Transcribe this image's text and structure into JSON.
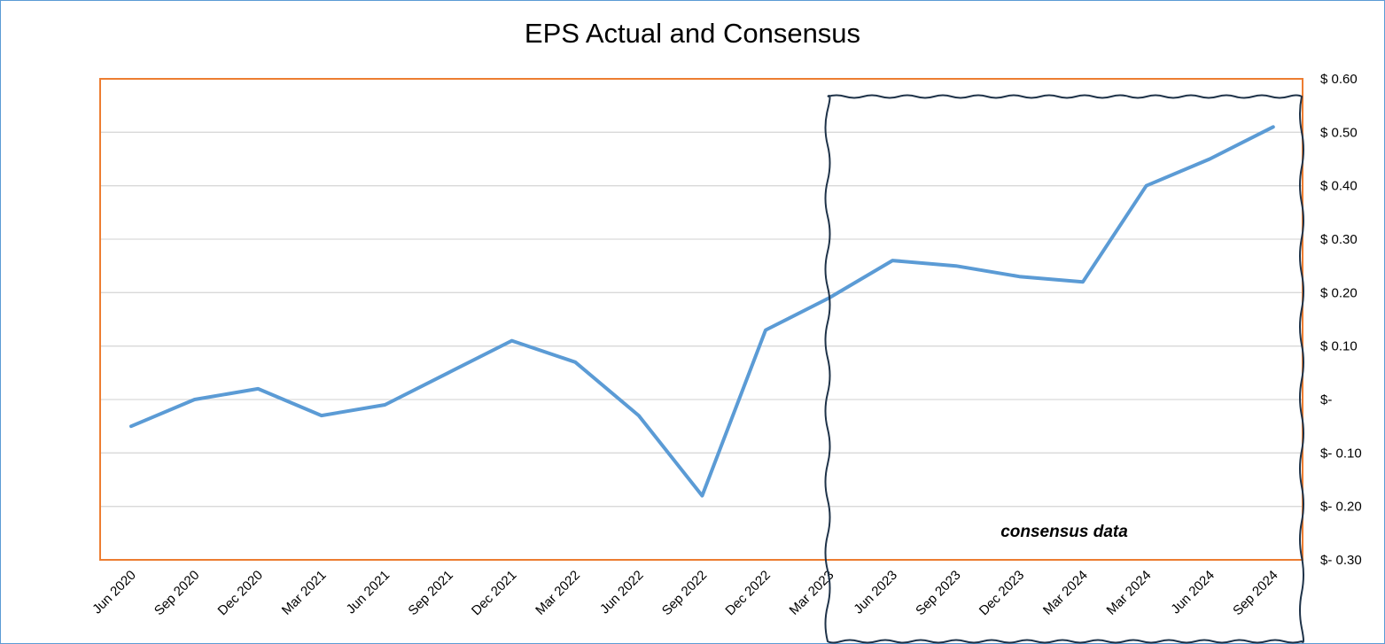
{
  "chart_data": {
    "type": "line",
    "title": "EPS Actual and Consensus",
    "xlabel": "",
    "ylabel": "",
    "ylim": [
      -0.3,
      0.6
    ],
    "y_ticks": [
      0.6,
      0.5,
      0.4,
      0.3,
      0.2,
      0.1,
      0,
      -0.1,
      -0.2,
      -0.3
    ],
    "y_tick_labels": [
      "$ 0.60",
      "$ 0.50",
      "$ 0.40",
      "$ 0.30",
      "$ 0.20",
      "$ 0.10",
      "$-",
      "$- 0.10",
      "$- 0.20",
      "$- 0.30"
    ],
    "y_axis_side": "right",
    "grid": true,
    "categories": [
      "Jun 2020",
      "Sep 2020",
      "Dec 2020",
      "Mar 2021",
      "Jun 2021",
      "Sep 2021",
      "Dec 2021",
      "Mar 2022",
      "Jun 2022",
      "Sep 2022",
      "Dec 2022",
      "Mar 2023",
      "Jun 2023",
      "Sep 2023",
      "Dec 2023",
      "Mar 2024",
      "Mar 2024",
      "Jun 2024",
      "Sep 2024"
    ],
    "series": [
      {
        "values": [
          -0.05,
          0.0,
          0.02,
          -0.03,
          -0.01,
          0.05,
          0.11,
          0.07,
          -0.03,
          -0.18,
          0.13,
          0.19,
          0.26,
          0.25,
          0.23,
          0.22,
          0.4,
          0.45,
          0.51
        ],
        "color": "#5b9bd5"
      }
    ],
    "annotation": {
      "text": "consensus data",
      "covers_from": "Mar 2023",
      "covers_to": "Sep 2024"
    },
    "plot_border_color": "#ed7d31",
    "gridline_color": "#d9d9d9",
    "annotation_box_color": "#1f3349"
  }
}
